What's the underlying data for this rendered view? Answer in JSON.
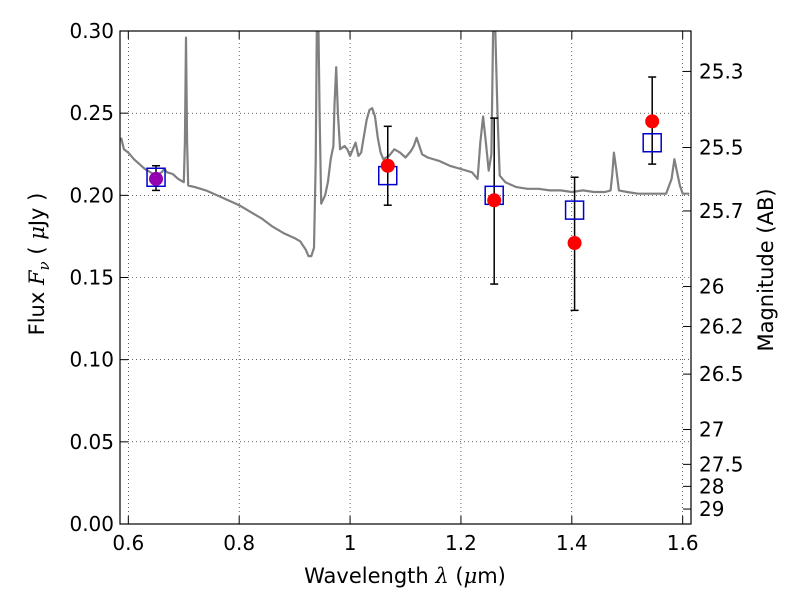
{
  "chart_data": {
    "type": "scatter",
    "xlabel": {
      "prefix": "Wavelength  ",
      "symbol": "λ",
      "unit_open": " (",
      "unit_mu": "μ",
      "unit_close": "m)"
    },
    "ylabel": {
      "prefix": "Flux  ",
      "symbol": "F",
      "sub": "ν",
      "unit_open": "  (  ",
      "unit_mu": "μ",
      "unit_close": "Jy  )"
    },
    "y2label": "Magnitude (AB)",
    "xlim": [
      0.585,
      1.615
    ],
    "ylim": [
      0.0,
      0.3
    ],
    "grid": true,
    "x_ticks": [
      {
        "value": 0.6,
        "label": "0.6"
      },
      {
        "value": 0.8,
        "label": "0.8"
      },
      {
        "value": 1.0,
        "label": "1"
      },
      {
        "value": 1.2,
        "label": "1.2"
      },
      {
        "value": 1.4,
        "label": "1.4"
      },
      {
        "value": 1.6,
        "label": "1.6"
      }
    ],
    "y_ticks": [
      {
        "value": 0.0,
        "label": "0.00"
      },
      {
        "value": 0.05,
        "label": "0.05"
      },
      {
        "value": 0.1,
        "label": "0.10"
      },
      {
        "value": 0.15,
        "label": "0.15"
      },
      {
        "value": 0.2,
        "label": "0.20"
      },
      {
        "value": 0.25,
        "label": "0.25"
      },
      {
        "value": 0.3,
        "label": "0.30"
      }
    ],
    "y2_ticks": [
      {
        "label": "25.3",
        "flux": 0.2754
      },
      {
        "label": "25.5",
        "flux": 0.2291
      },
      {
        "label": "25.7",
        "flux": 0.1905
      },
      {
        "label": "26",
        "flux": 0.1445
      },
      {
        "label": "26.2",
        "flux": 0.1202
      },
      {
        "label": "26.5",
        "flux": 0.0912
      },
      {
        "label": "27",
        "flux": 0.0575
      },
      {
        "label": "27.5",
        "flux": 0.0363
      },
      {
        "label": "28",
        "flux": 0.0229
      },
      {
        "label": "29",
        "flux": 0.0091
      }
    ],
    "series": [
      {
        "kind": "model_spectrum",
        "color": "#808080",
        "points": [
          [
            0.587,
            0.235
          ],
          [
            0.592,
            0.228
          ],
          [
            0.6,
            0.226
          ],
          [
            0.61,
            0.222
          ],
          [
            0.62,
            0.219
          ],
          [
            0.63,
            0.216
          ],
          [
            0.64,
            0.214
          ],
          [
            0.65,
            0.212
          ],
          [
            0.66,
            0.214
          ],
          [
            0.665,
            0.216
          ],
          [
            0.67,
            0.214
          ],
          [
            0.68,
            0.213
          ],
          [
            0.69,
            0.21
          ],
          [
            0.7,
            0.208
          ],
          [
            0.702,
            0.232
          ],
          [
            0.704,
            0.296
          ],
          [
            0.706,
            0.232
          ],
          [
            0.708,
            0.206
          ],
          [
            0.72,
            0.205
          ],
          [
            0.74,
            0.203
          ],
          [
            0.76,
            0.2
          ],
          [
            0.78,
            0.197
          ],
          [
            0.8,
            0.194
          ],
          [
            0.82,
            0.19
          ],
          [
            0.84,
            0.186
          ],
          [
            0.86,
            0.181
          ],
          [
            0.88,
            0.177
          ],
          [
            0.9,
            0.174
          ],
          [
            0.91,
            0.172
          ],
          [
            0.92,
            0.167
          ],
          [
            0.925,
            0.163
          ],
          [
            0.93,
            0.163
          ],
          [
            0.935,
            0.168
          ],
          [
            0.938,
            0.22
          ],
          [
            0.94,
            0.3
          ],
          [
            0.943,
            0.3
          ],
          [
            0.945,
            0.25
          ],
          [
            0.948,
            0.195
          ],
          [
            0.955,
            0.2
          ],
          [
            0.96,
            0.208
          ],
          [
            0.965,
            0.222
          ],
          [
            0.97,
            0.23
          ],
          [
            0.972,
            0.255
          ],
          [
            0.975,
            0.278
          ],
          [
            0.978,
            0.25
          ],
          [
            0.982,
            0.228
          ],
          [
            0.99,
            0.23
          ],
          [
            0.995,
            0.228
          ],
          [
            1.0,
            0.224
          ],
          [
            1.005,
            0.228
          ],
          [
            1.01,
            0.232
          ],
          [
            1.015,
            0.224
          ],
          [
            1.02,
            0.226
          ],
          [
            1.025,
            0.236
          ],
          [
            1.03,
            0.246
          ],
          [
            1.035,
            0.252
          ],
          [
            1.04,
            0.253
          ],
          [
            1.045,
            0.248
          ],
          [
            1.05,
            0.235
          ],
          [
            1.055,
            0.226
          ],
          [
            1.06,
            0.222
          ],
          [
            1.07,
            0.224
          ],
          [
            1.08,
            0.228
          ],
          [
            1.09,
            0.226
          ],
          [
            1.1,
            0.223
          ],
          [
            1.11,
            0.227
          ],
          [
            1.115,
            0.23
          ],
          [
            1.12,
            0.235
          ],
          [
            1.125,
            0.23
          ],
          [
            1.13,
            0.225
          ],
          [
            1.14,
            0.223
          ],
          [
            1.16,
            0.221
          ],
          [
            1.18,
            0.218
          ],
          [
            1.2,
            0.216
          ],
          [
            1.22,
            0.214
          ],
          [
            1.23,
            0.21
          ],
          [
            1.235,
            0.232
          ],
          [
            1.24,
            0.248
          ],
          [
            1.245,
            0.232
          ],
          [
            1.25,
            0.215
          ],
          [
            1.255,
            0.225
          ],
          [
            1.258,
            0.3
          ],
          [
            1.262,
            0.3
          ],
          [
            1.266,
            0.25
          ],
          [
            1.27,
            0.212
          ],
          [
            1.28,
            0.208
          ],
          [
            1.3,
            0.205
          ],
          [
            1.32,
            0.204
          ],
          [
            1.34,
            0.204
          ],
          [
            1.36,
            0.203
          ],
          [
            1.38,
            0.203
          ],
          [
            1.4,
            0.202
          ],
          [
            1.42,
            0.203
          ],
          [
            1.44,
            0.202
          ],
          [
            1.46,
            0.202
          ],
          [
            1.47,
            0.203
          ],
          [
            1.473,
            0.213
          ],
          [
            1.476,
            0.226
          ],
          [
            1.48,
            0.216
          ],
          [
            1.485,
            0.203
          ],
          [
            1.5,
            0.202
          ],
          [
            1.52,
            0.201
          ],
          [
            1.54,
            0.201
          ],
          [
            1.56,
            0.201
          ],
          [
            1.57,
            0.201
          ],
          [
            1.58,
            0.21
          ],
          [
            1.585,
            0.222
          ],
          [
            1.59,
            0.214
          ],
          [
            1.595,
            0.206
          ],
          [
            1.6,
            0.201
          ],
          [
            1.612,
            0.201
          ]
        ]
      },
      {
        "kind": "model_photometry",
        "marker": "open-square",
        "color": "#0000cc",
        "points": [
          {
            "x": 0.65,
            "y": 0.211
          },
          {
            "x": 1.068,
            "y": 0.212
          },
          {
            "x": 1.26,
            "y": 0.2
          },
          {
            "x": 1.405,
            "y": 0.191
          },
          {
            "x": 1.545,
            "y": 0.232
          }
        ]
      },
      {
        "kind": "observed_photometry",
        "marker": "filled-circle",
        "color": "#ff0000",
        "points": [
          {
            "x": 0.65,
            "y": 0.21,
            "err_low": 0.203,
            "err_high": 0.218,
            "color": "#9400b0"
          },
          {
            "x": 1.068,
            "y": 0.218,
            "err_low": 0.194,
            "err_high": 0.242
          },
          {
            "x": 1.26,
            "y": 0.197,
            "err_low": 0.146,
            "err_high": 0.247
          },
          {
            "x": 1.405,
            "y": 0.171,
            "err_low": 0.13,
            "err_high": 0.211
          },
          {
            "x": 1.545,
            "y": 0.245,
            "err_low": 0.219,
            "err_high": 0.272
          }
        ]
      }
    ]
  }
}
